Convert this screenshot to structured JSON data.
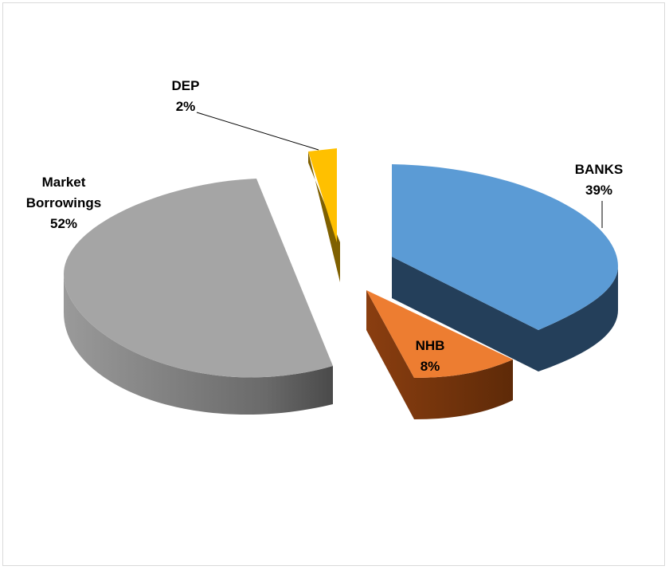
{
  "chart_data": {
    "type": "pie",
    "style": "3d-exploded",
    "title": "",
    "legend": "none",
    "slices": [
      {
        "name": "BANKS",
        "value": 39,
        "label": "39%",
        "color": "#5b9bd5",
        "side_color": "#243f5a"
      },
      {
        "name": "NHB",
        "value": 8,
        "label": "8%",
        "color": "#ed7d31",
        "side_color": "#843c0c"
      },
      {
        "name": "Market Borrowings",
        "name_lines": [
          "Market",
          "Borrowings"
        ],
        "value": 52,
        "label": "52%",
        "color": "#a5a5a5",
        "side_color": "#6e6e6e"
      },
      {
        "name": "DEP",
        "value": 2,
        "label": "2%",
        "color": "#ffc000",
        "side_color": "#7f6000"
      }
    ]
  }
}
